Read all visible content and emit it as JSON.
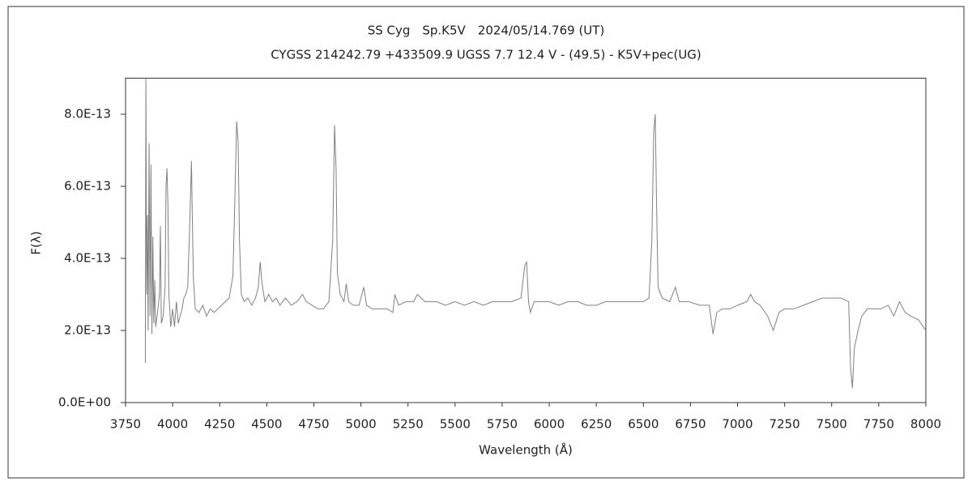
{
  "chart_data": {
    "type": "line",
    "title": "SS Cyg　Sp.K5V　2024/05/14.769 (UT)",
    "subtitle": "CYGSS 214242.79 +433509.9 UGSS 7.7 12.4 V - (49.5) - K5V+pec(UG)",
    "x_label": "Wavelength (Å)",
    "y_label": "F(λ)",
    "xlim": [
      3750,
      8000
    ],
    "xticks": [
      3750,
      4000,
      4250,
      4500,
      4750,
      5000,
      5250,
      5500,
      5750,
      6000,
      6250,
      6500,
      6750,
      7000,
      7250,
      7500,
      7750,
      8000
    ],
    "ylim": [
      0,
      9e-13
    ],
    "yticks": [
      {
        "value": 0,
        "label": "0.0E+00"
      },
      {
        "value": 2e-13,
        "label": "2.0E-13"
      },
      {
        "value": 4e-13,
        "label": "4.0E-13"
      },
      {
        "value": 6e-13,
        "label": "6.0E-13"
      },
      {
        "value": 8e-13,
        "label": "8.0E-13"
      }
    ],
    "grid": false,
    "series": [
      {
        "name": "F(λ)",
        "color": "#808080",
        "x": [
          3855,
          3858,
          3862,
          3866,
          3870,
          3875,
          3880,
          3885,
          3890,
          3895,
          3900,
          3905,
          3910,
          3920,
          3930,
          3935,
          3940,
          3950,
          3960,
          3965,
          3970,
          3975,
          3980,
          3990,
          4000,
          4010,
          4020,
          4030,
          4040,
          4050,
          4060,
          4070,
          4080,
          4090,
          4100,
          4105,
          4110,
          4120,
          4140,
          4160,
          4180,
          4200,
          4220,
          4240,
          4260,
          4280,
          4300,
          4320,
          4330,
          4340,
          4348,
          4355,
          4365,
          4380,
          4400,
          4420,
          4440,
          4455,
          4465,
          4475,
          4490,
          4510,
          4530,
          4550,
          4570,
          4600,
          4630,
          4660,
          4690,
          4710,
          4740,
          4770,
          4800,
          4830,
          4850,
          4860,
          4868,
          4875,
          4890,
          4910,
          4922,
          4935,
          4960,
          4990,
          5015,
          5030,
          5060,
          5100,
          5140,
          5170,
          5180,
          5200,
          5240,
          5280,
          5300,
          5340,
          5400,
          5450,
          5500,
          5550,
          5600,
          5650,
          5700,
          5750,
          5800,
          5850,
          5870,
          5880,
          5890,
          5900,
          5920,
          5960,
          6000,
          6050,
          6100,
          6150,
          6200,
          6250,
          6300,
          6350,
          6400,
          6450,
          6500,
          6530,
          6545,
          6555,
          6563,
          6570,
          6578,
          6600,
          6640,
          6670,
          6690,
          6740,
          6800,
          6850,
          6870,
          6890,
          6920,
          6960,
          7000,
          7050,
          7070,
          7090,
          7120,
          7160,
          7190,
          7220,
          7250,
          7300,
          7350,
          7400,
          7450,
          7500,
          7550,
          7590,
          7600,
          7610,
          7620,
          7640,
          7660,
          7690,
          7720,
          7760,
          7800,
          7830,
          7860,
          7890,
          7920,
          7960,
          8000
        ],
        "values": [
          1.1e-13,
          9e-13,
          3e-13,
          5.2e-13,
          2e-13,
          7.2e-13,
          2.4e-13,
          6.6e-13,
          1.9e-13,
          4.6e-13,
          2.2e-13,
          3.4e-13,
          2.1e-13,
          2.5e-13,
          3e-13,
          4.9e-13,
          2.2e-13,
          2.4e-13,
          3.2e-13,
          6e-13,
          6.5e-13,
          5.5e-13,
          3e-13,
          2.1e-13,
          2.6e-13,
          2.1e-13,
          2.8e-13,
          2.2e-13,
          2.4e-13,
          2.6e-13,
          2.9e-13,
          3e-13,
          3.2e-13,
          4.8e-13,
          6.7e-13,
          5e-13,
          3.5e-13,
          2.6e-13,
          2.5e-13,
          2.7e-13,
          2.4e-13,
          2.6e-13,
          2.5e-13,
          2.6e-13,
          2.7e-13,
          2.8e-13,
          2.9e-13,
          3.5e-13,
          5.5e-13,
          7.8e-13,
          7.2e-13,
          4.5e-13,
          3e-13,
          2.8e-13,
          2.9e-13,
          2.7e-13,
          2.9e-13,
          3.2e-13,
          3.9e-13,
          3.3e-13,
          2.8e-13,
          3e-13,
          2.8e-13,
          2.9e-13,
          2.7e-13,
          2.9e-13,
          2.7e-13,
          2.8e-13,
          3e-13,
          2.8e-13,
          2.7e-13,
          2.6e-13,
          2.6e-13,
          2.8e-13,
          4.5e-13,
          7.7e-13,
          6.5e-13,
          3.6e-13,
          3e-13,
          2.8e-13,
          3.3e-13,
          2.8e-13,
          2.7e-13,
          2.7e-13,
          3.2e-13,
          2.7e-13,
          2.6e-13,
          2.6e-13,
          2.6e-13,
          2.5e-13,
          3e-13,
          2.7e-13,
          2.8e-13,
          2.8e-13,
          3e-13,
          2.8e-13,
          2.8e-13,
          2.7e-13,
          2.8e-13,
          2.7e-13,
          2.8e-13,
          2.7e-13,
          2.8e-13,
          2.8e-13,
          2.8e-13,
          2.9e-13,
          3.8e-13,
          3.9e-13,
          2.8e-13,
          2.5e-13,
          2.8e-13,
          2.8e-13,
          2.8e-13,
          2.7e-13,
          2.8e-13,
          2.8e-13,
          2.7e-13,
          2.7e-13,
          2.8e-13,
          2.8e-13,
          2.8e-13,
          2.8e-13,
          2.8e-13,
          2.9e-13,
          4.5e-13,
          7.5e-13,
          8e-13,
          5.5e-13,
          3.2e-13,
          2.9e-13,
          2.8e-13,
          3.2e-13,
          2.8e-13,
          2.8e-13,
          2.7e-13,
          2.7e-13,
          1.9e-13,
          2.5e-13,
          2.6e-13,
          2.6e-13,
          2.7e-13,
          2.8e-13,
          3e-13,
          2.8e-13,
          2.7e-13,
          2.4e-13,
          2e-13,
          2.5e-13,
          2.6e-13,
          2.6e-13,
          2.7e-13,
          2.8e-13,
          2.9e-13,
          2.9e-13,
          2.9e-13,
          2.8e-13,
          1e-13,
          4e-14,
          1.5e-13,
          2e-13,
          2.4e-13,
          2.6e-13,
          2.6e-13,
          2.6e-13,
          2.7e-13,
          2.4e-13,
          2.8e-13,
          2.5e-13,
          2.4e-13,
          2.3e-13,
          2e-13
        ]
      }
    ]
  }
}
